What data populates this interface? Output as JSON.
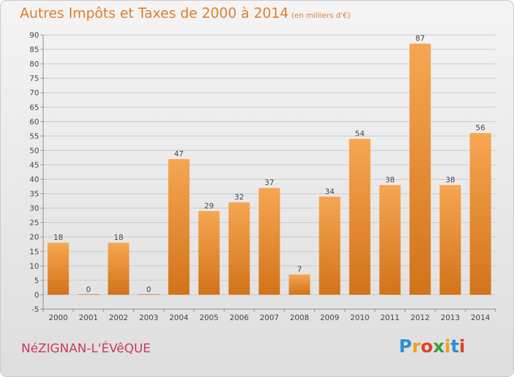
{
  "title": "Autres Impôts et Taxes de 2000 à 2014",
  "unit": "(en milliers d'€)",
  "commune": "NéZIGNAN-L'ÉVêQUE",
  "logo": {
    "letters": [
      "P",
      "r",
      "o",
      "x",
      "i",
      "t",
      "i"
    ],
    "colors": [
      "#2a8fd6",
      "#f0a020",
      "#e04020",
      "#3aa040",
      "#f0a020",
      "#2a8fd6",
      "#e04020"
    ]
  },
  "colors": {
    "bar_top": "#f6a652",
    "bar_bottom": "#d2731a",
    "grid": "#c8c8c8",
    "title": "#e07f2c",
    "commune": "#cd3a5e"
  },
  "chart_data": {
    "type": "bar",
    "title": "Autres Impôts et Taxes de 2000 à 2014",
    "xlabel": "",
    "ylabel": "",
    "categories": [
      "2000",
      "2001",
      "2002",
      "2003",
      "2004",
      "2005",
      "2006",
      "2007",
      "2008",
      "2009",
      "2010",
      "2011",
      "2012",
      "2013",
      "2014"
    ],
    "values": [
      18,
      0,
      18,
      0,
      47,
      29,
      32,
      37,
      7,
      34,
      54,
      38,
      87,
      38,
      56
    ],
    "ylim": [
      -5,
      90
    ],
    "yticks": [
      -5,
      0,
      5,
      10,
      15,
      20,
      25,
      30,
      35,
      40,
      45,
      50,
      55,
      60,
      65,
      70,
      75,
      80,
      85,
      90
    ],
    "grid": true,
    "legend": "none"
  }
}
